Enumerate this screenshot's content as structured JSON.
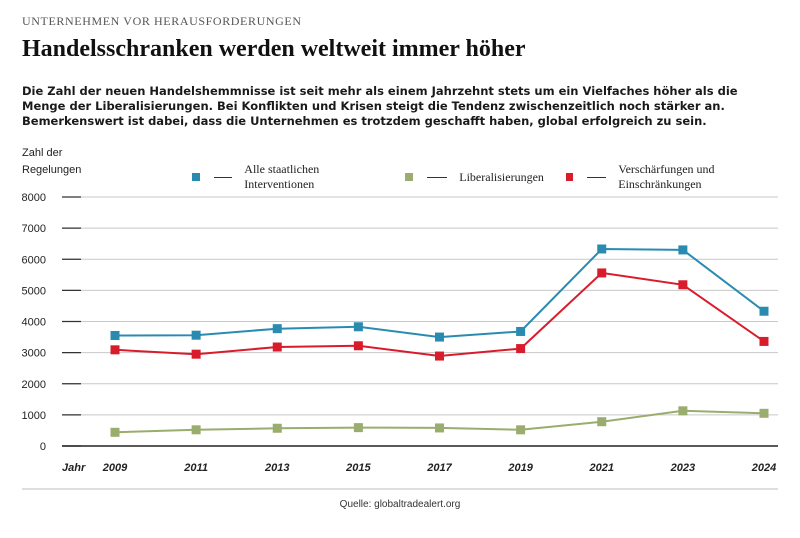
{
  "header": {
    "kicker": "UNTERNEHMEN VOR HERAUSFORDERUNGEN",
    "title": "Handelsschranken werden weltweit immer höher",
    "lead": "Die Zahl der neuen Handelshemmnisse ist seit mehr als einem Jahrzehnt stets um ein Vielfaches höher als die Menge der Liberalisierungen. Bei Konflikten und Krisen steigt die Tendenz zwischenzeitlich noch stärker an. Bemerkenswert ist dabei, dass die Unternehmen es trotzdem geschafft haben, global erfolgreich zu sein."
  },
  "footer": {
    "source": "Quelle: globaltradealert.org"
  },
  "chart_data": {
    "type": "line",
    "ylabel_line1": "Zahl der",
    "ylabel_line2": "Regelungen",
    "xlabel": "Jahr",
    "categories": [
      "2009",
      "2011",
      "2013",
      "2015",
      "2017",
      "2019",
      "2021",
      "2023",
      "2024"
    ],
    "ylim": [
      0,
      8000
    ],
    "yticks": [
      0,
      1000,
      2000,
      3000,
      4000,
      5000,
      6000,
      7000,
      8000
    ],
    "grid": true,
    "legend_position": "top",
    "series": [
      {
        "name": "Alle staatlichen Interventionen",
        "color": "#2a8bb0",
        "values": [
          3550,
          3560,
          3770,
          3830,
          3500,
          3680,
          6330,
          6300,
          4330
        ]
      },
      {
        "name": "Liberalisierungen",
        "color": "#9aac6e",
        "values": [
          440,
          520,
          570,
          590,
          580,
          520,
          780,
          1130,
          1050
        ]
      },
      {
        "name": "Verschärfungen und Einschränkungen",
        "color": "#d91c2b",
        "values": [
          3090,
          2950,
          3180,
          3220,
          2890,
          3130,
          5560,
          5180,
          3360
        ]
      }
    ]
  }
}
